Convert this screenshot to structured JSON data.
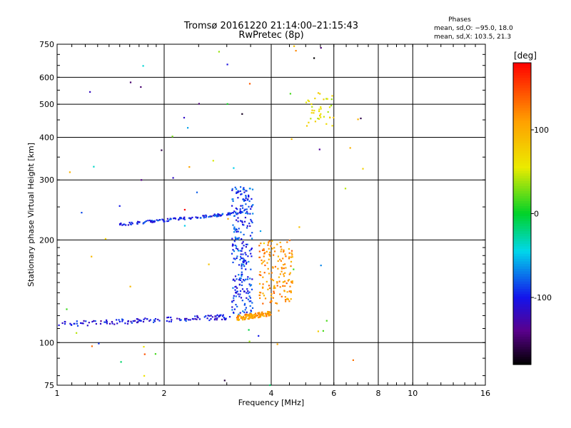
{
  "chart_data": {
    "type": "scatter",
    "title": "Tromsø 20161220 21:14:00–21:15:43",
    "subtitle": "RwPretec (8p)",
    "xlabel": "Frequency [MHz]",
    "ylabel": "Stationary phase Virtual Height [km]",
    "xscale": "log",
    "yscale": "log",
    "xlim": [
      1,
      16
    ],
    "ylim": [
      75,
      750
    ],
    "xticks": [
      1,
      2,
      4,
      6,
      8,
      10,
      16
    ],
    "yticks": [
      75,
      100,
      200,
      300,
      400,
      500,
      600,
      750
    ],
    "xgrid": [
      2,
      4,
      6,
      8,
      10
    ],
    "ygrid": [
      100,
      200,
      300,
      400,
      500,
      600
    ],
    "grid": true,
    "stats": {
      "heading": "Phases",
      "line_o": "mean, sd,O: −95.0, 18.0",
      "line_x": "mean, sd,X: 103.5, 21.3"
    },
    "colorbar": {
      "label": "[deg]",
      "range": [
        -180,
        180
      ],
      "ticks": [
        100,
        0,
        -100
      ],
      "palette": "rainbow (black → purple → blue → cyan → green → yellow → orange → red)"
    },
    "traces": [
      {
        "name": "O-mode low trace",
        "x_start": 1.0,
        "x_end": 3.1,
        "h_start": 113,
        "h_end": 119,
        "phase": -105
      },
      {
        "name": "O-mode 220 km trace",
        "x_start": 1.5,
        "x_end": 3.3,
        "h_start": 222,
        "h_end": 240,
        "phase": -95
      },
      {
        "name": "Spread column near 3.4 MHz",
        "x_start": 3.1,
        "x_end": 3.55,
        "h_start": 120,
        "h_end": 290,
        "phase": -90
      },
      {
        "name": "X-mode low trace",
        "x_start": 3.2,
        "x_end": 4.0,
        "h_start": 118,
        "h_end": 122,
        "phase": 110
      },
      {
        "name": "X-mode spread near 4 MHz",
        "x_start": 3.7,
        "x_end": 4.6,
        "h_start": 130,
        "h_end": 200,
        "phase": 115
      },
      {
        "name": "Cluster near 5.5 MHz",
        "x_start": 5.0,
        "x_end": 6.0,
        "h_start": 430,
        "h_end": 540,
        "phase": 60
      }
    ]
  }
}
